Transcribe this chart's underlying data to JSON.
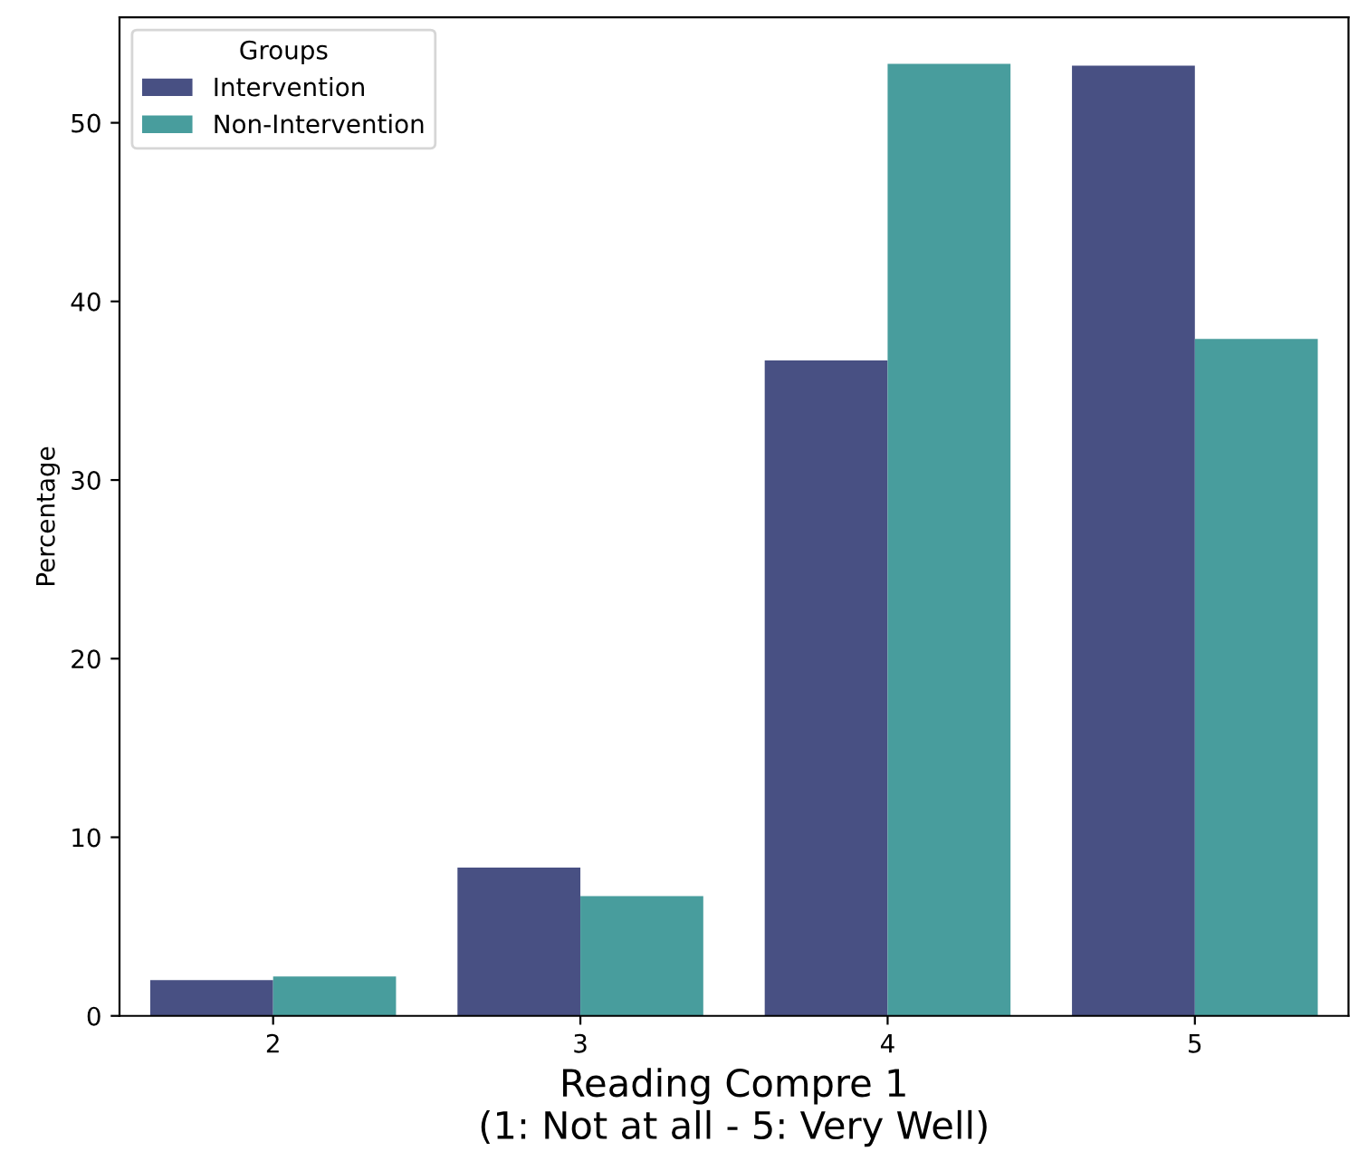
{
  "chart_data": {
    "type": "bar",
    "categories": [
      "2",
      "3",
      "4",
      "5"
    ],
    "xlabel": "Reading Compre 1\n(1: Not at all - 5: Very Well)",
    "ylabel": "Percentage",
    "legend_title": "Groups",
    "legend": "top left",
    "grid": false,
    "series": [
      {
        "name": "Intervention",
        "color": "#485083",
        "values": [
          2.0,
          8.3,
          36.7,
          53.2
        ]
      },
      {
        "name": "Non-Intervention",
        "color": "#489d9d",
        "values": [
          2.2,
          6.7,
          53.3,
          37.9
        ]
      }
    ],
    "ylim": [
      0,
      55.9
    ],
    "yticks": [
      0,
      10,
      20,
      30,
      40,
      50
    ]
  }
}
